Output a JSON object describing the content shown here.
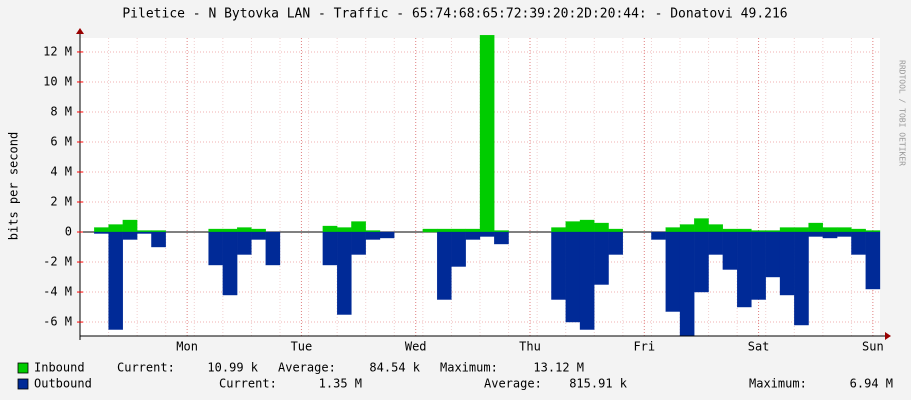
{
  "chart_data": {
    "type": "area",
    "title": "Piletice - N Bytovka LAN - Traffic - 65:74:68:65:72:39:20:2D:20:44: - Donatovi 49.216",
    "y_label": "bits per second",
    "watermark": "RRDTOOL / TOBI OETIKER",
    "categories": [
      null,
      null,
      null,
      null,
      null,
      null,
      null,
      "Mon",
      null,
      null,
      null,
      null,
      null,
      null,
      null,
      "Tue",
      null,
      null,
      null,
      null,
      null,
      null,
      null,
      "Wed",
      null,
      null,
      null,
      null,
      null,
      null,
      null,
      "Thu",
      null,
      null,
      null,
      null,
      null,
      null,
      null,
      "Fri",
      null,
      null,
      null,
      null,
      null,
      null,
      null,
      "Sat",
      null,
      null,
      null,
      null,
      null,
      null,
      null,
      "Sun"
    ],
    "ylim": [
      -6930000,
      12930000
    ],
    "yticks": [
      {
        "value": -6000000,
        "label": "-6 M"
      },
      {
        "value": -4000000,
        "label": "-4 M"
      },
      {
        "value": -2000000,
        "label": "-2 M"
      },
      0,
      {
        "value": 2000000,
        "label": "2 M"
      },
      {
        "value": 4000000,
        "label": "4 M"
      },
      {
        "value": 6000000,
        "label": "6 M"
      },
      {
        "value": 8000000,
        "label": "8 M"
      },
      {
        "value": 10000000,
        "label": "10 M"
      },
      {
        "value": 12000000,
        "label": "12 M"
      }
    ],
    "grid": true,
    "series": [
      {
        "name": "Inbound",
        "color": "#00cc00",
        "values": [
          0,
          300000,
          500000,
          800000,
          100000,
          100000,
          0,
          0,
          0,
          200000,
          200000,
          300000,
          200000,
          0,
          0,
          0,
          0,
          400000,
          300000,
          700000,
          100000,
          0,
          0,
          0,
          200000,
          200000,
          200000,
          200000,
          13120000,
          100000,
          0,
          0,
          0,
          300000,
          700000,
          800000,
          600000,
          200000,
          0,
          0,
          0,
          300000,
          500000,
          900000,
          500000,
          200000,
          200000,
          100000,
          100000,
          300000,
          300000,
          600000,
          300000,
          300000,
          200000,
          100000
        ],
        "stats": [
          {
            "label": "Current:",
            "value": "10.99 k"
          },
          {
            "label": "Average:",
            "value": "84.54 k"
          },
          {
            "label": "Maximum:",
            "value": "13.12 M"
          }
        ]
      },
      {
        "name": "Outbound",
        "color": "#002a97",
        "values": [
          0,
          -100000,
          -6500000,
          -500000,
          -100000,
          -1000000,
          0,
          0,
          0,
          -2200000,
          -4200000,
          -1500000,
          -500000,
          -2200000,
          0,
          0,
          0,
          -2200000,
          -5500000,
          -1500000,
          -500000,
          -400000,
          0,
          0,
          0,
          -4500000,
          -2300000,
          -500000,
          -300000,
          -800000,
          0,
          0,
          0,
          -4500000,
          -6000000,
          -6500000,
          -3500000,
          -1500000,
          0,
          0,
          -500000,
          -5300000,
          -6940000,
          -4000000,
          -1500000,
          -2500000,
          -5000000,
          -4500000,
          -3000000,
          -4200000,
          -6200000,
          -300000,
          -400000,
          -300000,
          -1500000,
          -3800000
        ],
        "stats": [
          {
            "label": "Current:",
            "value": "1.35 M"
          },
          {
            "label": "Average:",
            "value": "815.91 k"
          },
          {
            "label": "Maximum:",
            "value": "6.94 M"
          }
        ]
      }
    ]
  }
}
